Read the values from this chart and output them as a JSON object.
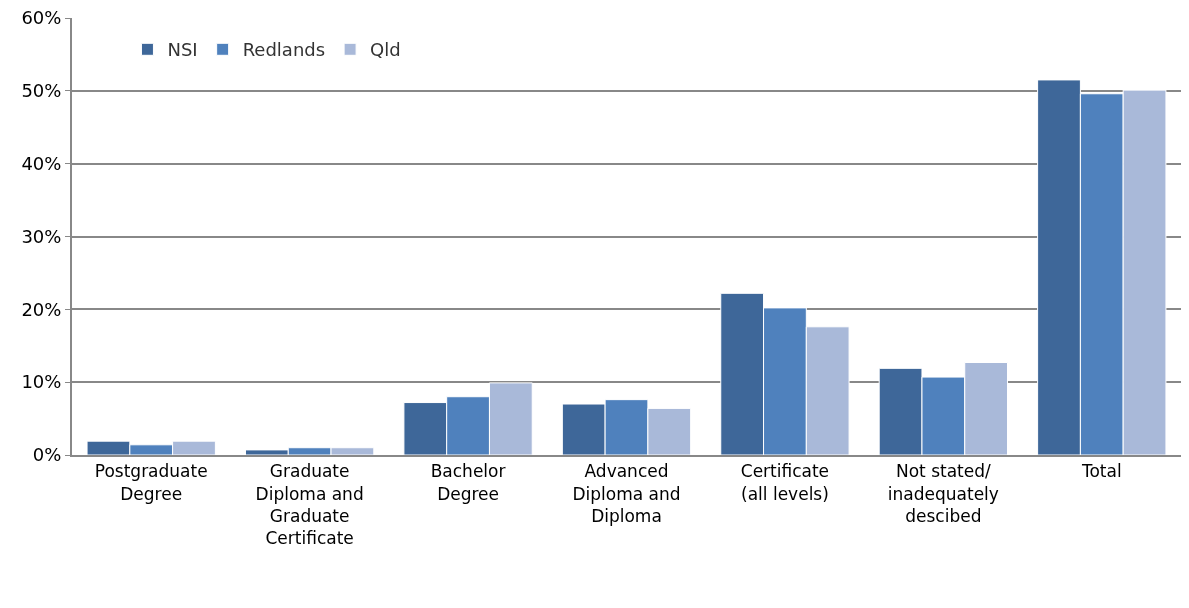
{
  "chart_data": {
    "type": "bar",
    "categories": [
      "Postgraduate Degree",
      "Graduate Diploma and Graduate Certificate",
      "Bachelor Degree",
      "Advanced Diploma and Diploma",
      "Certificate (all levels)",
      "Not stated/ inadequately descibed",
      "Total"
    ],
    "series": [
      {
        "name": "NSI",
        "color": "#3e6799",
        "values": [
          1.9,
          0.7,
          7.2,
          7.0,
          22.2,
          11.9,
          51.5
        ]
      },
      {
        "name": "Redlands",
        "color": "#4f81bd",
        "values": [
          1.4,
          1.0,
          8.0,
          7.6,
          20.2,
          10.7,
          49.6
        ]
      },
      {
        "name": "Qld",
        "color": "#a9b9d9",
        "values": [
          1.9,
          1.0,
          9.9,
          6.4,
          17.6,
          12.7,
          50.1
        ]
      }
    ],
    "ylim": [
      0,
      60
    ],
    "yticks": [
      {
        "value": 0,
        "label": "0%"
      },
      {
        "value": 10,
        "label": "10%"
      },
      {
        "value": 20,
        "label": "20%"
      },
      {
        "value": 30,
        "label": "30%"
      },
      {
        "value": 40,
        "label": "40%"
      },
      {
        "value": 50,
        "label": "50%"
      },
      {
        "value": 60,
        "label": "60%"
      }
    ],
    "grid": "y",
    "legend": "top left"
  }
}
